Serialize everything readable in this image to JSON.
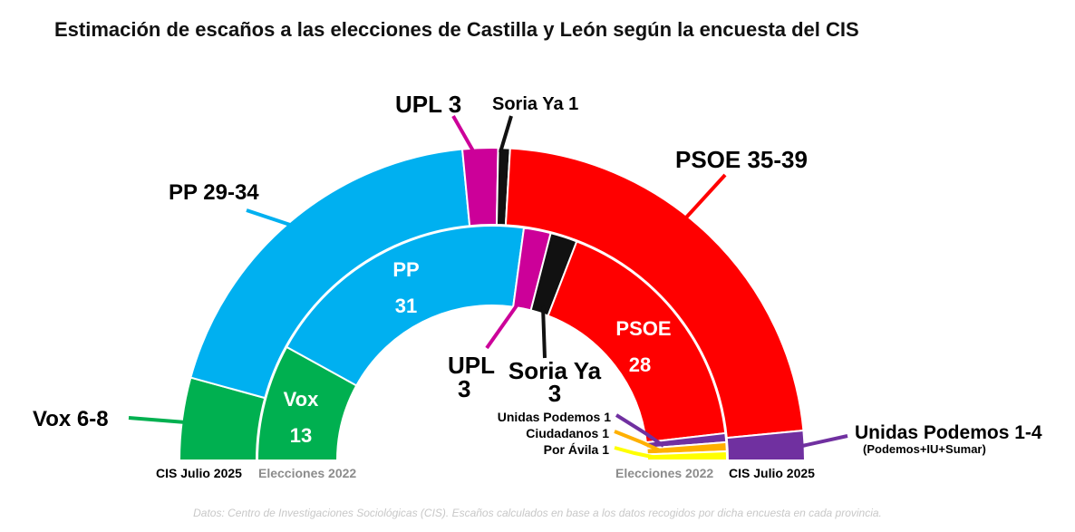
{
  "chart_data": {
    "type": "pie",
    "subtype": "parliament-half-donut",
    "title": "Estimación de escaños a las elecciones de Castilla y León según la encuesta del CIS",
    "source": "Datos: Centro de Investigaciones Sociológicas (CIS). Escaños calculados en base a los datos recogidos por dicha encuesta en cada provincia.",
    "rings": [
      {
        "name": "CIS Julio 2025",
        "position": "outer",
        "series": [
          {
            "party": "Vox",
            "min": 6,
            "max": 8,
            "label": "Vox 6-8",
            "color": "#00b050"
          },
          {
            "party": "PP",
            "min": 29,
            "max": 34,
            "label": "PP 29-34",
            "color": "#00b0f0"
          },
          {
            "party": "UPL",
            "min": 3,
            "max": 3,
            "label": "UPL 3",
            "color": "#cc0099"
          },
          {
            "party": "Soria Ya",
            "min": 1,
            "max": 1,
            "label": "Soria Ya 1",
            "color": "#111111"
          },
          {
            "party": "PSOE",
            "min": 35,
            "max": 39,
            "label": "PSOE 35-39",
            "color": "#ff0000"
          },
          {
            "party": "Unidas Podemos",
            "min": 1,
            "max": 4,
            "label": "Unidas Podemos 1-4",
            "sublabel": "(Podemos+IU+Sumar)",
            "color": "#7030a0"
          }
        ]
      },
      {
        "name": "Elecciones 2022",
        "position": "inner",
        "series": [
          {
            "party": "Vox",
            "value": 13,
            "name_label": "Vox",
            "value_label": "13",
            "color": "#00b050"
          },
          {
            "party": "PP",
            "value": 31,
            "name_label": "PP",
            "value_label": "31",
            "color": "#00b0f0"
          },
          {
            "party": "UPL",
            "value": 3,
            "name_label": "UPL",
            "value_label": "3",
            "color": "#cc0099"
          },
          {
            "party": "Soria Ya",
            "value": 3,
            "name_label": "Soria Ya",
            "value_label": "3",
            "color": "#111111"
          },
          {
            "party": "PSOE",
            "value": 28,
            "name_label": "PSOE",
            "value_label": "28",
            "color": "#ff0000"
          },
          {
            "party": "Unidas Podemos",
            "value": 1,
            "label": "Unidas Podemos 1",
            "color": "#7030a0"
          },
          {
            "party": "Ciudadanos",
            "value": 1,
            "label": "Ciudadanos 1",
            "color": "#ffb000"
          },
          {
            "party": "Por Ávila",
            "value": 1,
            "label": "Por Ávila 1",
            "color": "#ffff00"
          }
        ]
      }
    ],
    "ring_labels": {
      "left_outer": "CIS Julio 2025",
      "left_inner": "Elecciones 2022",
      "right_inner": "Elecciones 2022",
      "right_outer": "CIS Julio 2025"
    }
  }
}
